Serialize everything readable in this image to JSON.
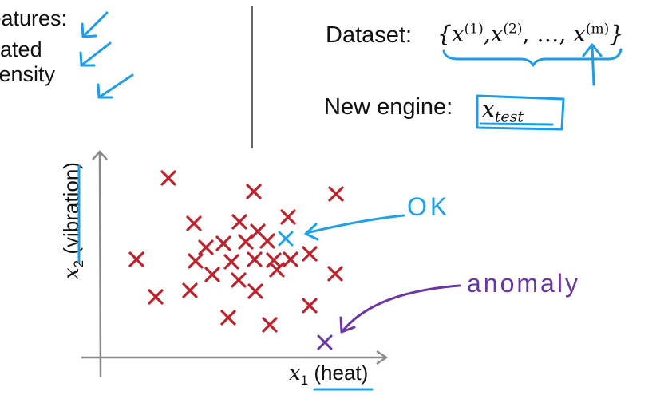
{
  "features": {
    "lines": [
      "Features:",
      "heated",
      "intensity"
    ]
  },
  "dataset": {
    "label": "Dataset:",
    "set_open": "{",
    "items": [
      "x",
      "(1)",
      ",",
      "x",
      "(2)",
      ", …, ",
      "x",
      "(m)"
    ],
    "set_close": "}"
  },
  "new_engine": {
    "label": "New engine:",
    "x": "x",
    "sub": "test"
  },
  "chart": {
    "xlabel_var": "x",
    "xlabel_sub": "1",
    "xlabel_text": "(heat)",
    "ylabel_var": "x",
    "ylabel_sub": "2",
    "ylabel_text": "(vibration)",
    "ok_label": "OK",
    "anomaly_label": "anomaly"
  },
  "colors": {
    "normal": "#c0202a",
    "ok": "#1fa0e8",
    "anomaly": "#6a35a6",
    "accent": "#1f9be8"
  }
}
